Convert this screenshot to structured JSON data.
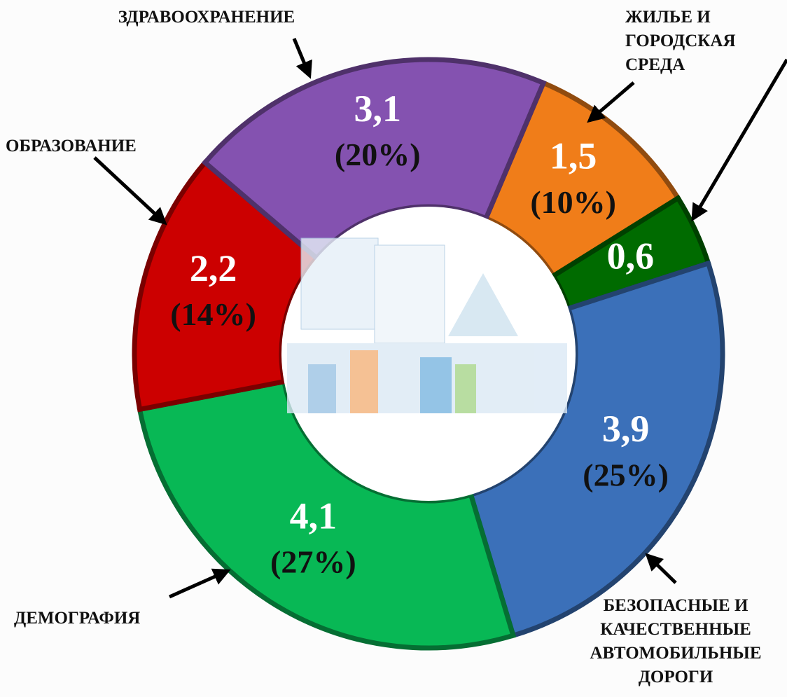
{
  "chart_data": {
    "type": "donut",
    "categories": [
      "ЖИЛЬЕ И ГОРОДСКАЯ СРЕДА",
      null,
      "БЕЗОПАСНЫЕ И КАЧЕСТВЕННЫЕ АВТОМОБИЛЬНЫЕ ДОРОГИ",
      "ДЕМОГРАФИЯ",
      "ОБРАЗОВАНИЕ",
      "ЗДРАВООХРАНЕНИЕ"
    ],
    "values": [
      1.5,
      0.6,
      3.9,
      4.1,
      2.2,
      3.1
    ],
    "value_labels": [
      "1,5",
      "0,6",
      "3,9",
      "4,1",
      "2,2",
      "3,1"
    ],
    "percent_labels": [
      "(10%)",
      null,
      "(25%)",
      "(27%)",
      "(14%)",
      "(20%)"
    ],
    "colors": [
      "#f07d19",
      "#006b00",
      "#3b70b9",
      "#08b855",
      "#cc0000",
      "#8452b0"
    ]
  }
}
